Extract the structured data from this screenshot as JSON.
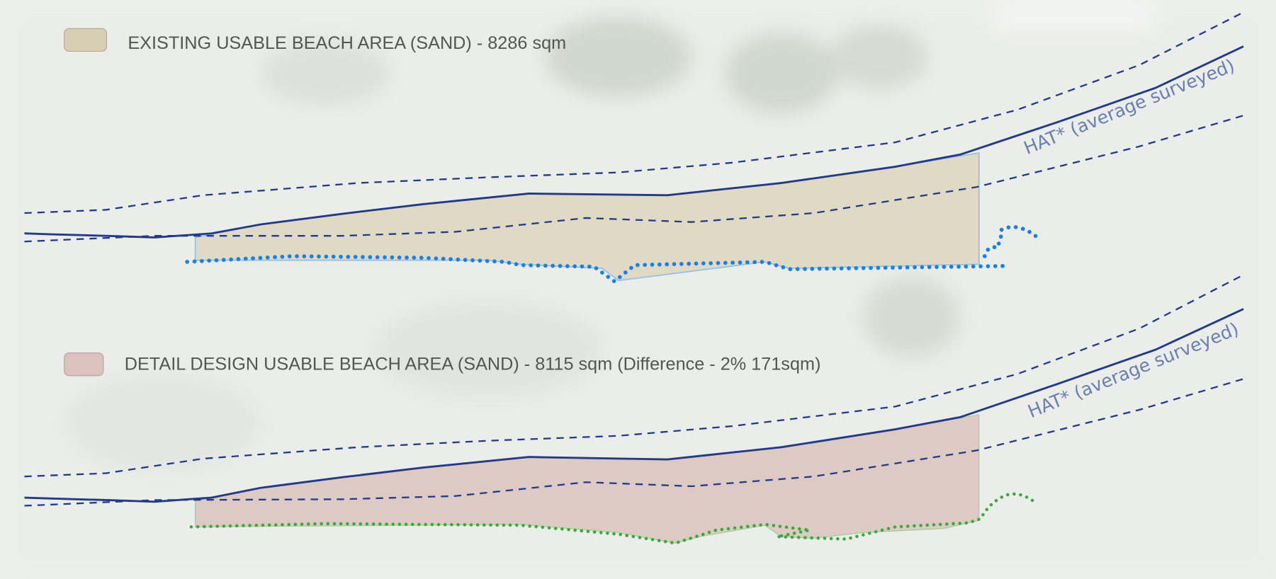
{
  "legend": [
    {
      "label": "EXISTING USABLE BEACH AREA (SAND) - 8286 sqm"
    },
    {
      "label": "DETAIL DESIGN USABLE BEACH AREA (SAND) - 8115 sqm (Difference - 2% 171sqm)"
    }
  ],
  "annotations": [
    "HAT* (average surveyed)",
    "HAT* (average surveyed)"
  ]
}
